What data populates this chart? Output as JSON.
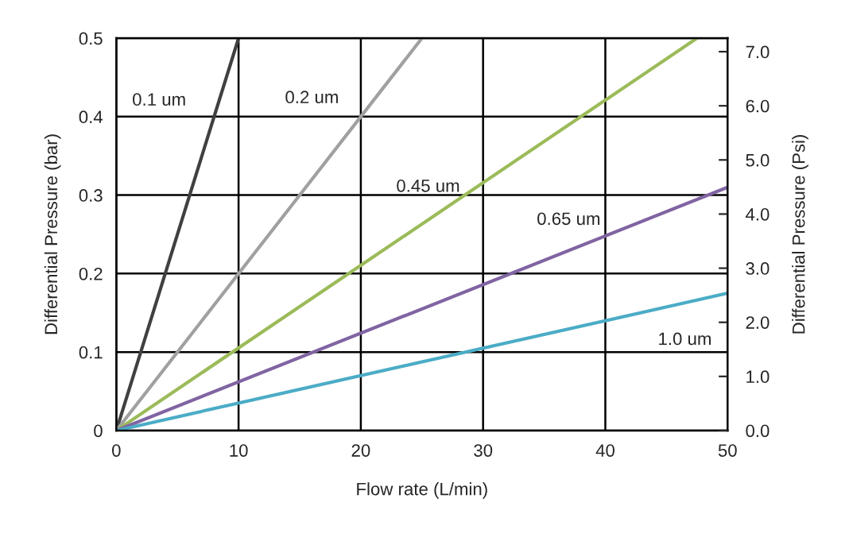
{
  "chart_data": {
    "type": "line",
    "xlabel": "Flow rate (L/min)",
    "ylabel": "Differential Pressure (bar)",
    "y2label": "Differential Pressure (Psi)",
    "xlim": [
      0,
      50
    ],
    "xticks": [
      0,
      10,
      20,
      30,
      40,
      50
    ],
    "ylim": [
      0,
      0.5
    ],
    "yticks": [
      0,
      0.1,
      0.2,
      0.3,
      0.4,
      0.5
    ],
    "y2lim": [
      0,
      7.25
    ],
    "y2ticks": [
      {
        "value": 0,
        "label": "0.0"
      },
      {
        "value": 1,
        "label": "1.0"
      },
      {
        "value": 2,
        "label": "2.0"
      },
      {
        "value": 3,
        "label": "3.0"
      },
      {
        "value": 4,
        "label": "4.0"
      },
      {
        "value": 5,
        "label": "5.0"
      },
      {
        "value": 6,
        "label": "6.0"
      },
      {
        "value": 7,
        "label": "7.0"
      }
    ],
    "grid": true,
    "legend": false,
    "marker": "none",
    "line_style": "solid",
    "series": [
      {
        "name": "0.1 um",
        "color": "#404040",
        "x": [
          0,
          10
        ],
        "values": [
          0,
          0.5
        ]
      },
      {
        "name": "0.2 um",
        "color": "#a0a0a0",
        "x": [
          0,
          25
        ],
        "values": [
          0,
          0.5
        ]
      },
      {
        "name": "0.45 um",
        "color": "#9bbb59",
        "x": [
          0,
          47.5
        ],
        "values": [
          0,
          0.5
        ]
      },
      {
        "name": "0.65 um",
        "color": "#8064a2",
        "x": [
          0,
          50
        ],
        "values": [
          0,
          0.31
        ]
      },
      {
        "name": "1.0 um",
        "color": "#4bacc6",
        "x": [
          0,
          50
        ],
        "values": [
          0,
          0.175
        ]
      }
    ]
  }
}
